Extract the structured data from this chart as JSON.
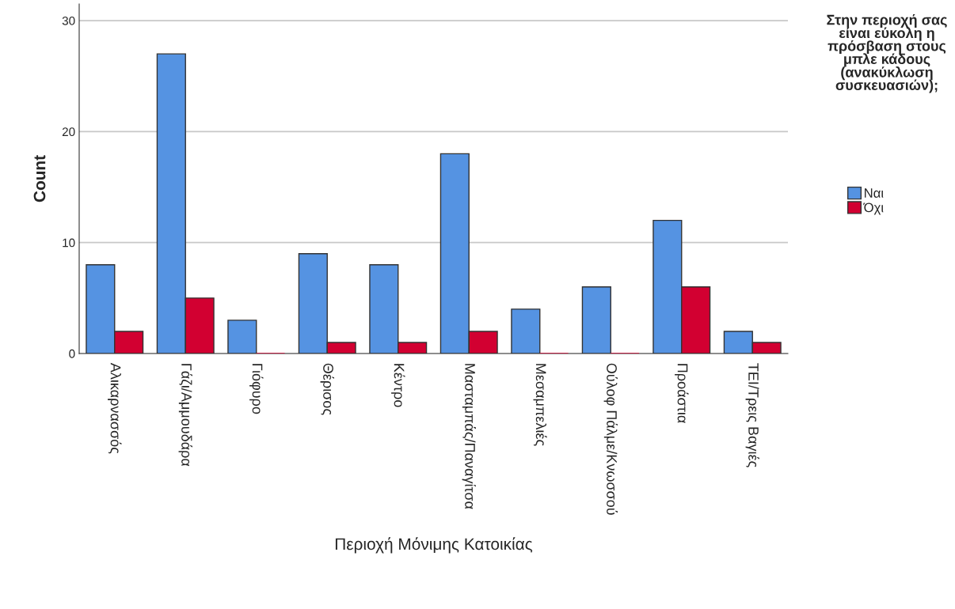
{
  "chart_data": {
    "type": "bar",
    "xlabel": "Περιοχή Μόνιμης Κατοικίας",
    "ylabel": "Count",
    "legend_title": "Στην περιοχή σας είναι εύκολη η πρόσβαση στους μπλε κάδους (ανακύκλωση συσκευασιών);",
    "categories": [
      "Αλικαρνασσός",
      "Γάζι/Αμμουδάρα",
      "Γιόφυρο",
      "Θέρισος",
      "Κέντρο",
      "Μασταμπάς/Παναγίτσα",
      "Μεσαμπελιές",
      "Ούλοφ Πάλμε/Κνωσσού",
      "Προάστια",
      "ΤΕΙ/Τρεις Βαγιές"
    ],
    "series": [
      {
        "name": "Ναι",
        "color": "#5593e2",
        "values": [
          8,
          27,
          3,
          9,
          8,
          18,
          4,
          6,
          12,
          2
        ]
      },
      {
        "name": "Όχι",
        "color": "#d20031",
        "values": [
          2,
          5,
          0,
          1,
          1,
          2,
          0,
          0,
          6,
          1
        ]
      }
    ],
    "ylim": [
      0,
      31.5
    ],
    "yticks": [
      0,
      10,
      20,
      30
    ],
    "grid": "y",
    "legend": "right"
  }
}
